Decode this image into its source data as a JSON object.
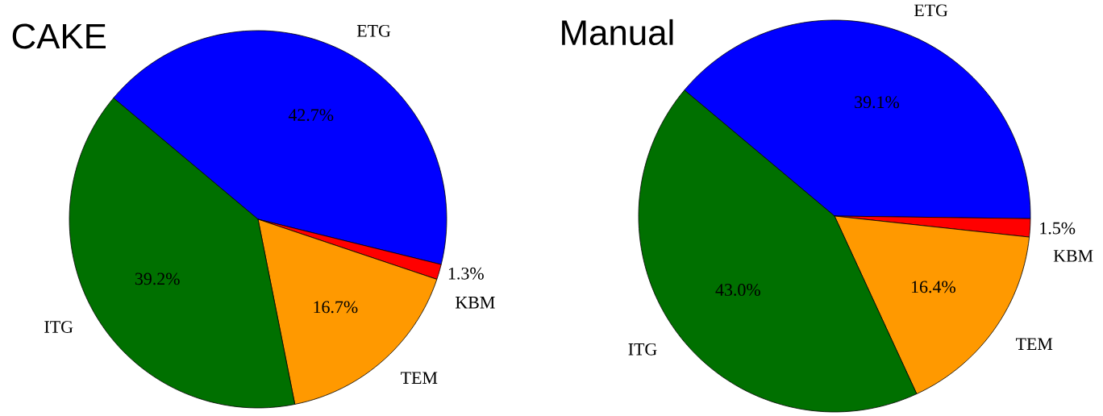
{
  "chart_data": [
    {
      "type": "pie",
      "title": "CAKE",
      "categories": [
        "ETG",
        "KBM",
        "TEM",
        "ITG"
      ],
      "values": [
        42.7,
        1.3,
        16.7,
        39.2
      ],
      "colors": [
        "#0000ff",
        "#ff0000",
        "#ff9900",
        "#007000"
      ],
      "value_labels": [
        "42.7%",
        "1.3%",
        "16.7%",
        "39.2%"
      ]
    },
    {
      "type": "pie",
      "title": "Manual",
      "categories": [
        "ETG",
        "KBM",
        "TEM",
        "ITG"
      ],
      "values": [
        39.1,
        1.5,
        16.4,
        43.0
      ],
      "colors": [
        "#0000ff",
        "#ff0000",
        "#ff9900",
        "#007000"
      ],
      "value_labels": [
        "39.1%",
        "1.5%",
        "16.4%",
        "43.0%"
      ]
    }
  ]
}
